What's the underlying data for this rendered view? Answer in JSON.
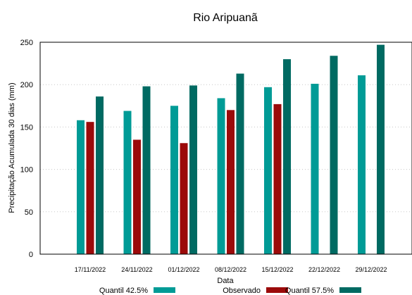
{
  "chart_data": {
    "type": "bar",
    "title": "Rio Aripuanã",
    "xlabel": "Data",
    "ylabel": "Precipitação Acumulada 30 dias (mm)",
    "ylim": [
      0,
      250
    ],
    "yticks": [
      0,
      50,
      100,
      150,
      200,
      250
    ],
    "grid": true,
    "legend_position": "bottom",
    "categories": [
      "17/11/2022",
      "24/11/2022",
      "01/12/2022",
      "08/12/2022",
      "15/12/2022",
      "22/12/2022",
      "29/12/2022"
    ],
    "series": [
      {
        "name": "Quantil 42.5%",
        "color": "#009b96",
        "values": [
          158,
          169,
          175,
          184,
          197,
          201,
          211
        ]
      },
      {
        "name": "Observado",
        "color": "#9b0a0a",
        "values": [
          156,
          135,
          131,
          170,
          177,
          null,
          null
        ]
      },
      {
        "name": "Quantil 57.5%",
        "color": "#006a62",
        "values": [
          186,
          198,
          199,
          213,
          230,
          234,
          247
        ]
      }
    ]
  }
}
